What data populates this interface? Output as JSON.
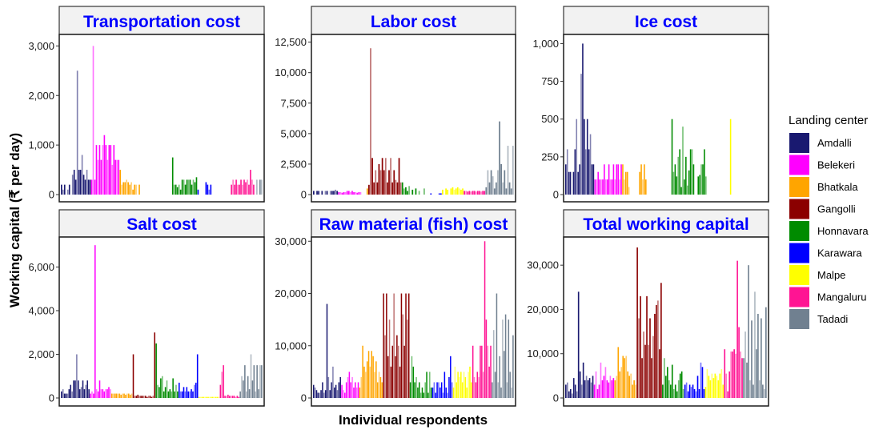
{
  "chart_data": {
    "type": "bar",
    "layout": "facet-grid 2x3, free y scales",
    "xlabel": "Individual respondents",
    "ylabel": "Working capital (₹ per day)",
    "legend": {
      "title": "Landing center",
      "position": "right",
      "entries": [
        {
          "name": "Amdalli",
          "color": "#191970"
        },
        {
          "name": "Belekeri",
          "color": "#ff00ff"
        },
        {
          "name": "Bhatkala",
          "color": "#ffa500"
        },
        {
          "name": "Gangolli",
          "color": "#8b0000"
        },
        {
          "name": "Honnavara",
          "color": "#008b00"
        },
        {
          "name": "Karawara",
          "color": "#0000ff"
        },
        {
          "name": "Malpe",
          "color": "#ffff00"
        },
        {
          "name": "Mangaluru",
          "color": "#ff1493"
        },
        {
          "name": "Tadadi",
          "color": "#708090"
        }
      ]
    },
    "groups": [
      "Amdalli",
      "Belekeri",
      "Bhatkala",
      "Gangolli",
      "Honnavara",
      "Karawara",
      "Malpe",
      "Mangaluru",
      "Tadadi"
    ],
    "panels": [
      {
        "title": "Transportation cost",
        "ylim": [
          0,
          3200
        ],
        "yticks": [
          0,
          1000,
          2000,
          3000
        ],
        "ytick_labels": [
          "0",
          "1,000",
          "2,000",
          "3,000"
        ],
        "series": {
          "Amdalli": [
            200,
            100,
            200,
            0,
            100,
            200,
            0,
            400,
            500,
            300,
            2500,
            500,
            500,
            800,
            400,
            300,
            500,
            300,
            300
          ],
          "Belekeri": [
            300,
            3000,
            300,
            1000,
            700,
            1000,
            700,
            1000,
            1200,
            1000,
            700,
            1000,
            1000,
            600,
            1000,
            700,
            700,
            700
          ],
          "Bhatkala": [
            500,
            200,
            250,
            250,
            300,
            250,
            200,
            250,
            100,
            200,
            200,
            0,
            200
          ],
          "Gangolli": [
            0,
            0,
            0,
            0,
            0,
            0,
            0,
            0,
            0,
            0,
            0,
            0,
            0,
            0,
            0,
            0,
            0,
            0,
            0,
            0
          ],
          "Honnavara": [
            750,
            200,
            200,
            150,
            200,
            100,
            300,
            300,
            200,
            300,
            300,
            300,
            200,
            300,
            250,
            350
          ],
          "Karawara": [
            100,
            0,
            0,
            0,
            0,
            250,
            200,
            100,
            200
          ],
          "Malpe": [
            0,
            0,
            0,
            0,
            0,
            0,
            0,
            0,
            0,
            0,
            0,
            0
          ],
          "Mangaluru": [
            200,
            300,
            200,
            300,
            200,
            200,
            300,
            200,
            300,
            250,
            300,
            200,
            500,
            300,
            200
          ],
          "Tadadi": [
            0,
            300,
            0,
            300,
            300
          ]
        }
      },
      {
        "title": "Labor cost",
        "ylim": [
          0,
          13000
        ],
        "yticks": [
          0,
          2500,
          5000,
          7500,
          10000,
          12500
        ],
        "ytick_labels": [
          "0",
          "2,500",
          "5,000",
          "7,500",
          "10,000",
          "12,500"
        ],
        "series": {
          "Amdalli": [
            300,
            0,
            300,
            300,
            0,
            300,
            0,
            300,
            300,
            0,
            300,
            300,
            300,
            400,
            300
          ],
          "Belekeri": [
            200,
            200,
            150,
            200,
            200,
            300,
            300,
            200,
            300,
            200,
            200,
            150,
            200,
            200
          ],
          "Bhatkala": [
            0,
            0,
            0,
            500
          ],
          "Gangolli": [
            800,
            12000,
            3000,
            1000,
            2000,
            1000,
            2500,
            2000,
            3000,
            2000,
            3000,
            1000,
            2000,
            3000,
            1000,
            2000,
            1200,
            1000,
            3000,
            1000
          ],
          "Honnavara": [
            1000,
            500,
            600,
            300,
            700,
            0,
            400,
            0,
            500,
            0,
            300,
            0,
            0,
            500
          ],
          "Karawara": [
            0,
            0,
            0,
            100,
            0,
            0,
            0,
            0,
            100,
            100
          ],
          "Malpe": [
            400,
            0,
            500,
            400,
            0,
            500,
            600,
            400,
            500,
            600,
            500,
            400,
            500
          ],
          "Mangaluru": [
            300,
            300,
            250,
            300,
            250,
            300,
            300,
            250,
            300,
            300,
            250,
            300,
            300
          ],
          "Tadadi": [
            600,
            2000,
            1000,
            2000,
            1500,
            500,
            1000,
            2000,
            6000,
            2500,
            1000,
            2000,
            500,
            4000,
            1000,
            500,
            4000
          ]
        }
      },
      {
        "title": "Ice cost",
        "ylim": [
          0,
          1050
        ],
        "yticks": [
          0,
          250,
          500,
          750,
          1000
        ],
        "ytick_labels": [
          "0",
          "250",
          "500",
          "750",
          "1,000"
        ],
        "series": {
          "Amdalli": [
            200,
            300,
            150,
            150,
            0,
            150,
            300,
            500,
            150,
            200,
            800,
            1000,
            500,
            300,
            500,
            300,
            400,
            200,
            200
          ],
          "Belekeri": [
            100,
            100,
            150,
            100,
            100,
            100,
            200,
            100,
            100,
            200,
            100,
            100,
            200,
            100,
            200,
            200,
            100,
            200
          ],
          "Bhatkala": [
            200,
            100,
            150,
            150,
            50,
            0,
            0,
            0,
            0,
            0,
            0,
            150,
            200,
            100,
            200,
            100
          ],
          "Gangolli": [
            0,
            0,
            0,
            0,
            0,
            0,
            0,
            0,
            0,
            0,
            0,
            0,
            0,
            0,
            0,
            0
          ],
          "Honnavara": [
            500,
            150,
            200,
            120,
            250,
            300,
            50,
            450,
            100,
            250,
            60,
            160,
            300,
            300,
            200,
            0,
            0,
            120,
            130,
            200,
            200,
            300,
            120
          ],
          "Karawara": [
            0,
            0,
            0,
            0,
            0,
            0,
            0,
            0,
            0,
            0
          ],
          "Malpe": [
            0,
            0,
            0,
            0,
            0,
            500,
            0,
            0,
            0
          ],
          "Mangaluru": [
            0,
            0,
            0,
            0,
            0,
            0,
            0,
            0,
            0,
            0,
            0,
            0
          ],
          "Tadadi": [
            0,
            0,
            0,
            0,
            0,
            0,
            0,
            0
          ]
        }
      },
      {
        "title": "Salt cost",
        "ylim": [
          0,
          7300
        ],
        "yticks": [
          0,
          2000,
          4000,
          6000
        ],
        "ytick_labels": [
          "0",
          "2,000",
          "4,000",
          "6,000"
        ],
        "series": {
          "Amdalli": [
            300,
            400,
            200,
            200,
            200,
            400,
            600,
            300,
            800,
            800,
            2000,
            800,
            400,
            500,
            800,
            400,
            600,
            800,
            400
          ],
          "Belekeri": [
            200,
            300,
            200,
            7000,
            400,
            300,
            800,
            400,
            400,
            300,
            400,
            400,
            500,
            400
          ],
          "Bhatkala": [
            200,
            200,
            200,
            200,
            200,
            200,
            150,
            200,
            200,
            150,
            200,
            200,
            150,
            200
          ],
          "Gangolli": [
            2000,
            100,
            100,
            150,
            100,
            100,
            100,
            100,
            100,
            50,
            100,
            100,
            50,
            100,
            3000
          ],
          "Honnavara": [
            2500,
            600,
            500,
            900,
            1000,
            300,
            500,
            800,
            300,
            400,
            300,
            900,
            300,
            600,
            300
          ],
          "Karawara": [
            700,
            300,
            300,
            500,
            300,
            500,
            300,
            300,
            400,
            300,
            600,
            700,
            2000
          ],
          "Malpe": [
            50,
            50,
            50,
            50,
            50,
            50,
            50,
            50,
            50,
            50,
            50,
            50,
            50,
            50
          ],
          "Mangaluru": [
            600,
            1200,
            1500,
            100,
            100,
            150,
            100,
            100,
            100,
            100,
            50,
            100,
            50
          ],
          "Tadadi": [
            300,
            1000,
            800,
            1500,
            300,
            1000,
            400,
            2000,
            800,
            1500,
            300,
            1500,
            400,
            1500,
            1500
          ]
        }
      },
      {
        "title": "Raw material (fish) cost",
        "ylim": [
          0,
          30500
        ],
        "yticks": [
          0,
          10000,
          20000,
          30000
        ],
        "ytick_labels": [
          "0",
          "10,000",
          "20,000",
          "30,000"
        ],
        "series": {
          "Amdalli": [
            2500,
            2000,
            1500,
            1000,
            1000,
            1500,
            3000,
            1000,
            1500,
            18000,
            4000,
            1500,
            3000,
            6000,
            2000,
            2500,
            1500,
            3000,
            4000
          ],
          "Belekeri": [
            2500,
            1500,
            1000,
            3000,
            4000,
            5000,
            3000,
            4000,
            2000,
            3000,
            2000,
            3000
          ],
          "Bhatkala": [
            2000,
            4000,
            10000,
            6000,
            5000,
            7000,
            9000,
            6000,
            9000,
            8000,
            5000,
            7000,
            3000,
            5000,
            4000,
            3000
          ],
          "Gangolli": [
            20000,
            12000,
            20000,
            8000,
            15000,
            6000,
            10000,
            20000,
            8000,
            12000,
            10000,
            6000,
            20000,
            16000,
            10000,
            20000,
            15000,
            20000
          ],
          "Honnavara": [
            3000,
            8000,
            6000,
            3000,
            4000,
            2000,
            3000,
            1000,
            2000,
            1000,
            3000,
            5000,
            1000,
            5000,
            2000
          ],
          "Karawara": [
            2000,
            3000,
            1000,
            3000,
            3000,
            2000,
            3000,
            1000,
            5000,
            2000,
            1000,
            4000,
            8000,
            3000
          ],
          "Malpe": [
            2000,
            6000,
            3000,
            5000,
            4000,
            5000,
            3000,
            5000,
            4000,
            2000,
            5000,
            6000,
            3000
          ],
          "Mangaluru": [
            10000,
            4000,
            3000,
            5000,
            4000,
            10000,
            10000,
            5000,
            30000,
            15000,
            10000,
            6000,
            10000
          ],
          "Tadadi": [
            3000,
            13000,
            5000,
            20000,
            3000,
            8000,
            2000,
            15000,
            9000,
            16000,
            3000,
            15000,
            5000,
            2000,
            12000
          ]
        }
      },
      {
        "title": "Total working capital",
        "ylim": [
          0,
          36000
        ],
        "yticks": [
          0,
          10000,
          20000,
          30000
        ],
        "ytick_labels": [
          "0",
          "10,000",
          "20,000",
          "30,000"
        ],
        "series": {
          "Amdalli": [
            3000,
            3500,
            1500,
            2000,
            1000,
            4500,
            3000,
            1500,
            24000,
            6000,
            3000,
            8000,
            4000,
            5000,
            4000,
            4500,
            3500,
            5000
          ],
          "Belekeri": [
            3000,
            6000,
            2000,
            3000,
            8000,
            4000,
            5000,
            7000,
            4000,
            3500,
            5000,
            4000,
            4500
          ],
          "Bhatkala": [
            4000,
            5000,
            11500,
            6000,
            7000,
            9500,
            9000,
            9500,
            6000,
            5000,
            5500,
            3000,
            4000,
            3000
          ],
          "Gangolli": [
            34000,
            18000,
            23000,
            9000,
            15000,
            12000,
            23000,
            12000,
            18000,
            9000,
            14000,
            19000,
            21000,
            22000,
            11000,
            26000
          ],
          "Honnavara": [
            3000,
            9000,
            5000,
            7000,
            4000,
            3000,
            7500,
            2000,
            3000,
            1500,
            4000,
            5500,
            6000,
            2000
          ],
          "Karawara": [
            3000,
            3500,
            1500,
            3000,
            2500,
            3000,
            2000,
            1500,
            5000,
            2000,
            8000,
            7000,
            2000
          ],
          "Malpe": [
            2500,
            6500,
            5000,
            4000,
            5500,
            4500,
            5500,
            5000,
            4000,
            5500,
            6500,
            3000
          ],
          "Mangaluru": [
            11000,
            5500,
            1500,
            6000,
            10500,
            10500,
            11000,
            10000,
            31000,
            16000,
            10500,
            9000
          ],
          "Tadadi": [
            9000,
            15000,
            8000,
            30000,
            4000,
            17500,
            3000,
            24000,
            11000,
            19000,
            4000,
            18000,
            3000,
            2000,
            20500
          ]
        }
      }
    ]
  }
}
